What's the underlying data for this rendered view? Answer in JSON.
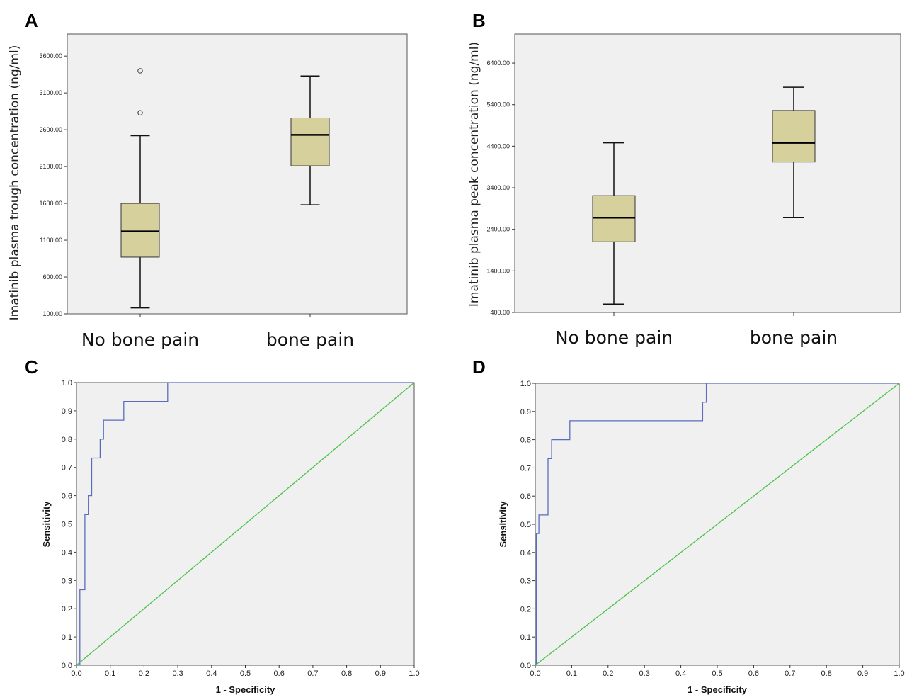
{
  "colors": {
    "plot_bg": "#f0f0f0",
    "box_fill": "#d6d09c",
    "roc_line": "#5b6cc0",
    "ref_line": "#4cc24c"
  },
  "chart_data": [
    {
      "panel": "A",
      "type": "box",
      "ylabel": "Imatinib plasma trough concentration (ng/ml)",
      "categories": [
        "No bone pain",
        "bone pain"
      ],
      "yticks": [
        "100.00",
        "600.00",
        "1100.00",
        "1600.00",
        "2100.00",
        "2600.00",
        "3100.00",
        "3600.00"
      ],
      "ylim": [
        100,
        3900
      ],
      "grid": false,
      "boxes": [
        {
          "min": 180,
          "q1": 870,
          "median": 1220,
          "q3": 1600,
          "max": 2520,
          "outliers": [
            2830,
            3400
          ]
        },
        {
          "min": 1580,
          "q1": 2110,
          "median": 2530,
          "q3": 2760,
          "max": 3330,
          "outliers": []
        }
      ]
    },
    {
      "panel": "B",
      "type": "box",
      "ylabel": "Imatinib plasma peak concentration (ng/ml)",
      "categories": [
        "No bone pain",
        "bone pain"
      ],
      "yticks": [
        "400.00",
        "1400.00",
        "2400.00",
        "3400.00",
        "4400.00",
        "5400.00",
        "6400.00"
      ],
      "ylim": [
        400,
        7100
      ],
      "grid": false,
      "boxes": [
        {
          "min": 600,
          "q1": 2100,
          "median": 2680,
          "q3": 3210,
          "max": 4480,
          "outliers": []
        },
        {
          "min": 2680,
          "q1": 4020,
          "median": 4480,
          "q3": 5260,
          "max": 5820,
          "outliers": []
        }
      ]
    },
    {
      "panel": "C",
      "type": "line",
      "xlabel": "1 - Specificity",
      "ylabel": "Sensitivity",
      "xlim": [
        0,
        1
      ],
      "ylim": [
        0,
        1
      ],
      "ticks": [
        "0.0",
        "0.1",
        "0.2",
        "0.3",
        "0.4",
        "0.5",
        "0.6",
        "0.7",
        "0.8",
        "0.9",
        "1.0"
      ],
      "grid": false,
      "series": [
        {
          "x": [
            0,
            0.01,
            0.01,
            0.025,
            0.025,
            0.035,
            0.035,
            0.045,
            0.045,
            0.07,
            0.07,
            0.08,
            0.08,
            0.14,
            0.14,
            0.27,
            0.27,
            1.0
          ],
          "y": [
            0,
            0,
            0.267,
            0.267,
            0.533,
            0.533,
            0.6,
            0.6,
            0.733,
            0.733,
            0.8,
            0.8,
            0.867,
            0.867,
            0.933,
            0.933,
            1.0,
            1.0
          ]
        },
        {
          "x": [
            0,
            1
          ],
          "y": [
            0,
            1
          ]
        }
      ]
    },
    {
      "panel": "D",
      "type": "line",
      "xlabel": "1 - Specificity",
      "ylabel": "Sensitivity",
      "xlim": [
        0,
        1
      ],
      "ylim": [
        0,
        1
      ],
      "ticks": [
        "0.0",
        "0.1",
        "0.2",
        "0.3",
        "0.4",
        "0.5",
        "0.6",
        "0.7",
        "0.8",
        "0.9",
        "1.0"
      ],
      "grid": false,
      "series": [
        {
          "x": [
            0,
            0.003,
            0.003,
            0.01,
            0.01,
            0.035,
            0.035,
            0.045,
            0.045,
            0.095,
            0.095,
            0.46,
            0.46,
            0.47,
            0.47,
            1.0
          ],
          "y": [
            0,
            0,
            0.467,
            0.467,
            0.533,
            0.533,
            0.733,
            0.733,
            0.8,
            0.8,
            0.867,
            0.867,
            0.933,
            0.933,
            1.0,
            1.0
          ]
        },
        {
          "x": [
            0,
            1
          ],
          "y": [
            0,
            1
          ]
        }
      ]
    }
  ]
}
